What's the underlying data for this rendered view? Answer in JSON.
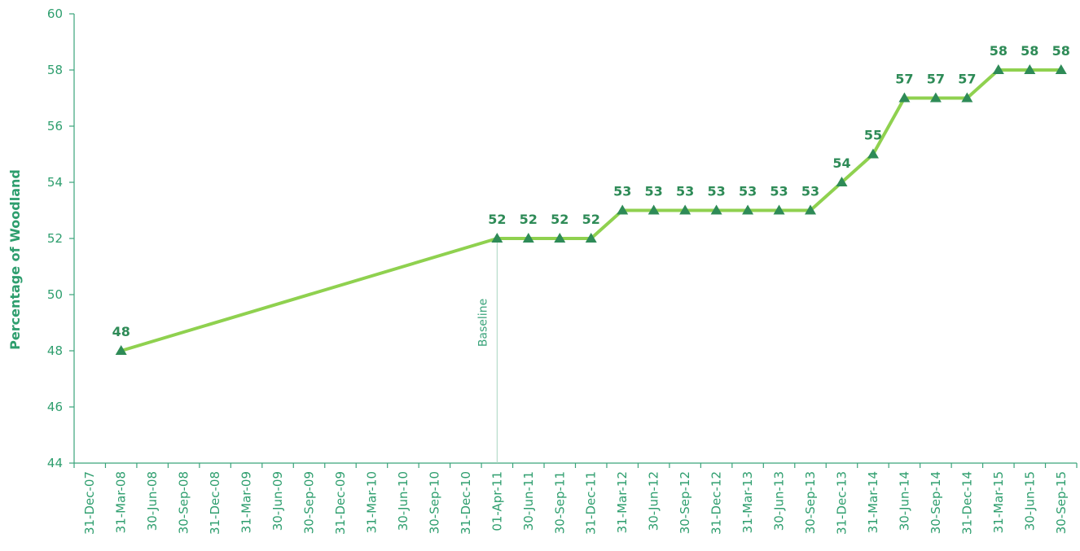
{
  "chart_data": {
    "type": "line",
    "ylabel": "Percentage of Woodland",
    "xlabel": "",
    "ylim": [
      44,
      60
    ],
    "yticks": [
      44,
      46,
      48,
      50,
      52,
      54,
      56,
      58,
      60
    ],
    "categories": [
      "31-Dec-07",
      "31-Mar-08",
      "30-Jun-08",
      "30-Sep-08",
      "31-Dec-08",
      "31-Mar-09",
      "30-Jun-09",
      "30-Sep-09",
      "31-Dec-09",
      "31-Mar-10",
      "30-Jun-10",
      "30-Sep-10",
      "31-Dec-10",
      "01-Apr-11",
      "30-Jun-11",
      "30-Sep-11",
      "31-Dec-11",
      "31-Mar-12",
      "30-Jun-12",
      "30-Sep-12",
      "31-Dec-12",
      "31-Mar-13",
      "30-Jun-13",
      "30-Sep-13",
      "31-Dec-13",
      "31-Mar-14",
      "30-Jun-14",
      "30-Sep-14",
      "31-Dec-14",
      "31-Mar-15",
      "30-Jun-15",
      "30-Sep-15"
    ],
    "series": [
      {
        "points": [
          {
            "x": "31-Mar-08",
            "y": 48
          },
          {
            "x": "01-Apr-11",
            "y": 52
          },
          {
            "x": "30-Jun-11",
            "y": 52
          },
          {
            "x": "30-Sep-11",
            "y": 52
          },
          {
            "x": "31-Dec-11",
            "y": 52
          },
          {
            "x": "31-Mar-12",
            "y": 53
          },
          {
            "x": "30-Jun-12",
            "y": 53
          },
          {
            "x": "30-Sep-12",
            "y": 53
          },
          {
            "x": "31-Dec-12",
            "y": 53
          },
          {
            "x": "31-Mar-13",
            "y": 53
          },
          {
            "x": "30-Jun-13",
            "y": 53
          },
          {
            "x": "30-Sep-13",
            "y": 53
          },
          {
            "x": "31-Dec-13",
            "y": 54
          },
          {
            "x": "31-Mar-14",
            "y": 55
          },
          {
            "x": "30-Jun-14",
            "y": 57
          },
          {
            "x": "30-Sep-14",
            "y": 57
          },
          {
            "x": "31-Dec-14",
            "y": 57
          },
          {
            "x": "31-Mar-15",
            "y": 58
          },
          {
            "x": "30-Jun-15",
            "y": 58
          },
          {
            "x": "30-Sep-15",
            "y": 58
          }
        ]
      }
    ],
    "baseline": {
      "x": "01-Apr-11",
      "label": "Baseline"
    },
    "grid": false,
    "colors": {
      "line": "#8fd14f",
      "marker": "#2e8b57",
      "axis": "#3aa37a",
      "text": "#2e9e6e"
    }
  }
}
